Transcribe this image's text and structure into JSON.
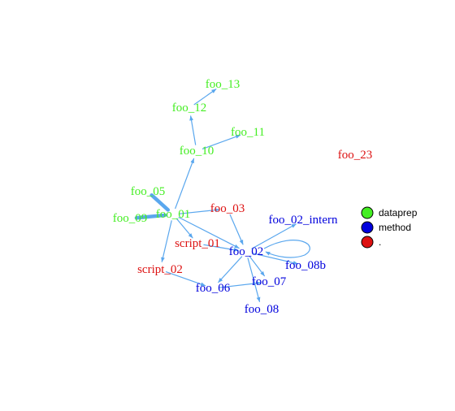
{
  "colors": {
    "edge": "#5aa7ee",
    "dataprep": "#44ee22",
    "method": "#0000dd",
    "other": "#dd1111"
  },
  "nodes": [
    {
      "id": "foo_13",
      "label": "foo_13",
      "group": "dataprep"
    },
    {
      "id": "foo_12",
      "label": "foo_12",
      "group": "dataprep"
    },
    {
      "id": "foo_11",
      "label": "foo_11",
      "group": "dataprep"
    },
    {
      "id": "foo_10",
      "label": "foo_10",
      "group": "dataprep"
    },
    {
      "id": "foo_23",
      "label": "foo_23",
      "group": "other"
    },
    {
      "id": "foo_05",
      "label": "foo_05",
      "group": "dataprep"
    },
    {
      "id": "foo_03",
      "label": "foo_03",
      "group": "other"
    },
    {
      "id": "foo_09",
      "label": "foo_09",
      "group": "dataprep"
    },
    {
      "id": "foo_01",
      "label": "foo_01",
      "group": "dataprep"
    },
    {
      "id": "foo_02_intern",
      "label": "foo_02_intern",
      "group": "method"
    },
    {
      "id": "script_01",
      "label": "script_01",
      "group": "other"
    },
    {
      "id": "foo_02",
      "label": "foo_02",
      "group": "method"
    },
    {
      "id": "foo_08b",
      "label": "foo_08b",
      "group": "method"
    },
    {
      "id": "script_02",
      "label": "script_02",
      "group": "other"
    },
    {
      "id": "foo_07",
      "label": "foo_07",
      "group": "method"
    },
    {
      "id": "foo_06",
      "label": "foo_06",
      "group": "method"
    },
    {
      "id": "foo_08",
      "label": "foo_08",
      "group": "method"
    }
  ],
  "edges": [
    {
      "from": "foo_12",
      "to": "foo_13"
    },
    {
      "from": "foo_10",
      "to": "foo_12"
    },
    {
      "from": "foo_10",
      "to": "foo_11"
    },
    {
      "from": "foo_01",
      "to": "foo_10"
    },
    {
      "from": "foo_05",
      "to": "foo_01",
      "weight": 3
    },
    {
      "from": "foo_09",
      "to": "foo_01",
      "weight": 3
    },
    {
      "from": "foo_01",
      "to": "foo_03"
    },
    {
      "from": "foo_01",
      "to": "script_01"
    },
    {
      "from": "foo_01",
      "to": "foo_02"
    },
    {
      "from": "foo_03",
      "to": "foo_02"
    },
    {
      "from": "foo_02",
      "to": "foo_02_intern"
    },
    {
      "from": "foo_02",
      "to": "foo_02",
      "loop": true
    },
    {
      "from": "foo_02",
      "to": "foo_08b"
    },
    {
      "from": "foo_02",
      "to": "foo_07"
    },
    {
      "from": "foo_02",
      "to": "foo_08"
    },
    {
      "from": "foo_02",
      "to": "foo_06"
    },
    {
      "from": "script_01",
      "to": "foo_02"
    },
    {
      "from": "foo_01",
      "to": "script_02"
    },
    {
      "from": "script_02",
      "to": "foo_06"
    },
    {
      "from": "foo_06",
      "to": "foo_07"
    }
  ],
  "legend": [
    {
      "label": "dataprep",
      "group": "dataprep"
    },
    {
      "label": "method",
      "group": "method"
    },
    {
      "label": ".",
      "group": "other"
    }
  ]
}
